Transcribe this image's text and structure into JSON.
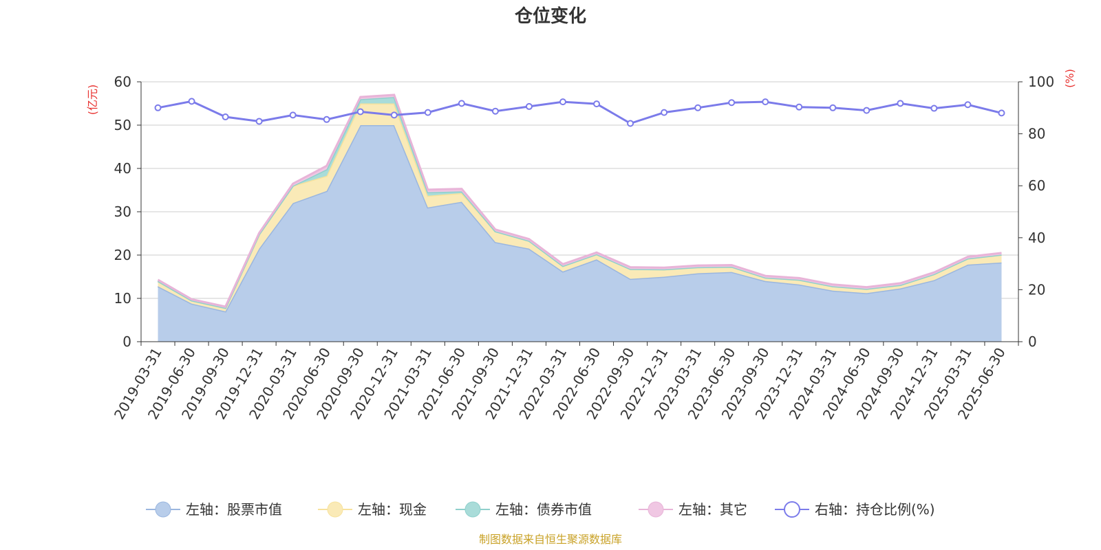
{
  "chart_data": {
    "type": "area",
    "title": "仓位变化",
    "left_unit": "(亿元)",
    "right_unit": "(%)",
    "left_ylim": [
      0,
      60
    ],
    "left_ticks": [
      "0",
      "10",
      "20",
      "30",
      "40",
      "50",
      "60"
    ],
    "right_ylim": [
      0,
      100
    ],
    "right_ticks": [
      "0",
      "20",
      "40",
      "60",
      "80",
      "100"
    ],
    "grid": true,
    "legend_position": "bottom",
    "categories": [
      "2019-03-31",
      "2019-06-30",
      "2019-09-30",
      "2019-12-31",
      "2020-03-31",
      "2020-06-30",
      "2020-09-30",
      "2020-12-31",
      "2021-03-31",
      "2021-06-30",
      "2021-09-30",
      "2021-12-31",
      "2022-03-31",
      "2022-06-30",
      "2022-09-30",
      "2022-12-31",
      "2023-03-31",
      "2023-06-30",
      "2023-09-30",
      "2023-12-31",
      "2024-03-31",
      "2024-06-30",
      "2024-09-30",
      "2024-12-31",
      "2025-03-31",
      "2025-06-30"
    ],
    "series": [
      {
        "name": "左轴：股票市值",
        "axis": "left",
        "kind": "stacked-area",
        "fill": "#b8cdea",
        "line": "#9ab6df",
        "values": [
          12.8,
          8.8,
          7.0,
          21.5,
          32.0,
          34.8,
          50.0,
          50.0,
          31.0,
          32.3,
          23.0,
          21.5,
          16.2,
          19.0,
          14.5,
          15.0,
          15.8,
          16.1,
          14.0,
          13.2,
          11.8,
          11.2,
          12.3,
          14.2,
          17.8,
          18.3
        ]
      },
      {
        "name": "左轴：现金",
        "axis": "left",
        "kind": "stacked-area",
        "fill": "#faeab7",
        "line": "#f7e29c",
        "values": [
          1.2,
          0.7,
          0.8,
          3.3,
          4.0,
          3.5,
          5.0,
          5.0,
          2.7,
          2.0,
          2.5,
          1.8,
          1.3,
          1.2,
          2.3,
          1.7,
          1.4,
          1.2,
          0.8,
          1.1,
          1.0,
          1.0,
          0.8,
          1.4,
          1.4,
          1.8
        ]
      },
      {
        "name": "左轴：债券市值",
        "axis": "left",
        "kind": "stacked-area",
        "fill": "#a9dcd9",
        "line": "#8fd0cc",
        "values": [
          0,
          0,
          0,
          0,
          0,
          1.5,
          1.0,
          1.5,
          0.8,
          0.4,
          0,
          0,
          0,
          0,
          0,
          0,
          0,
          0,
          0,
          0,
          0,
          0,
          0,
          0,
          0,
          0
        ]
      },
      {
        "name": "左轴：其它",
        "axis": "left",
        "kind": "stacked-area",
        "fill": "#f0c7e3",
        "line": "#e8b4d8",
        "values": [
          0.3,
          0.3,
          0.3,
          0.3,
          0.5,
          0.8,
          0.5,
          0.5,
          0.6,
          0.6,
          0.4,
          0.4,
          0.4,
          0.4,
          0.4,
          0.4,
          0.4,
          0.4,
          0.4,
          0.4,
          0.4,
          0.4,
          0.4,
          0.4,
          0.4,
          0.4
        ]
      },
      {
        "name": "右轴：持仓比例(%)",
        "axis": "right",
        "kind": "line",
        "line": "#7b7bea",
        "values": [
          90.0,
          92.5,
          86.5,
          84.8,
          87.2,
          85.5,
          88.5,
          87.2,
          88.2,
          91.7,
          88.7,
          90.5,
          92.3,
          91.5,
          84.0,
          88.2,
          90.0,
          92.0,
          92.3,
          90.3,
          90.0,
          89.0,
          91.7,
          89.8,
          91.2,
          88.0
        ]
      }
    ],
    "source": "制图数据来自恒生聚源数据库"
  }
}
